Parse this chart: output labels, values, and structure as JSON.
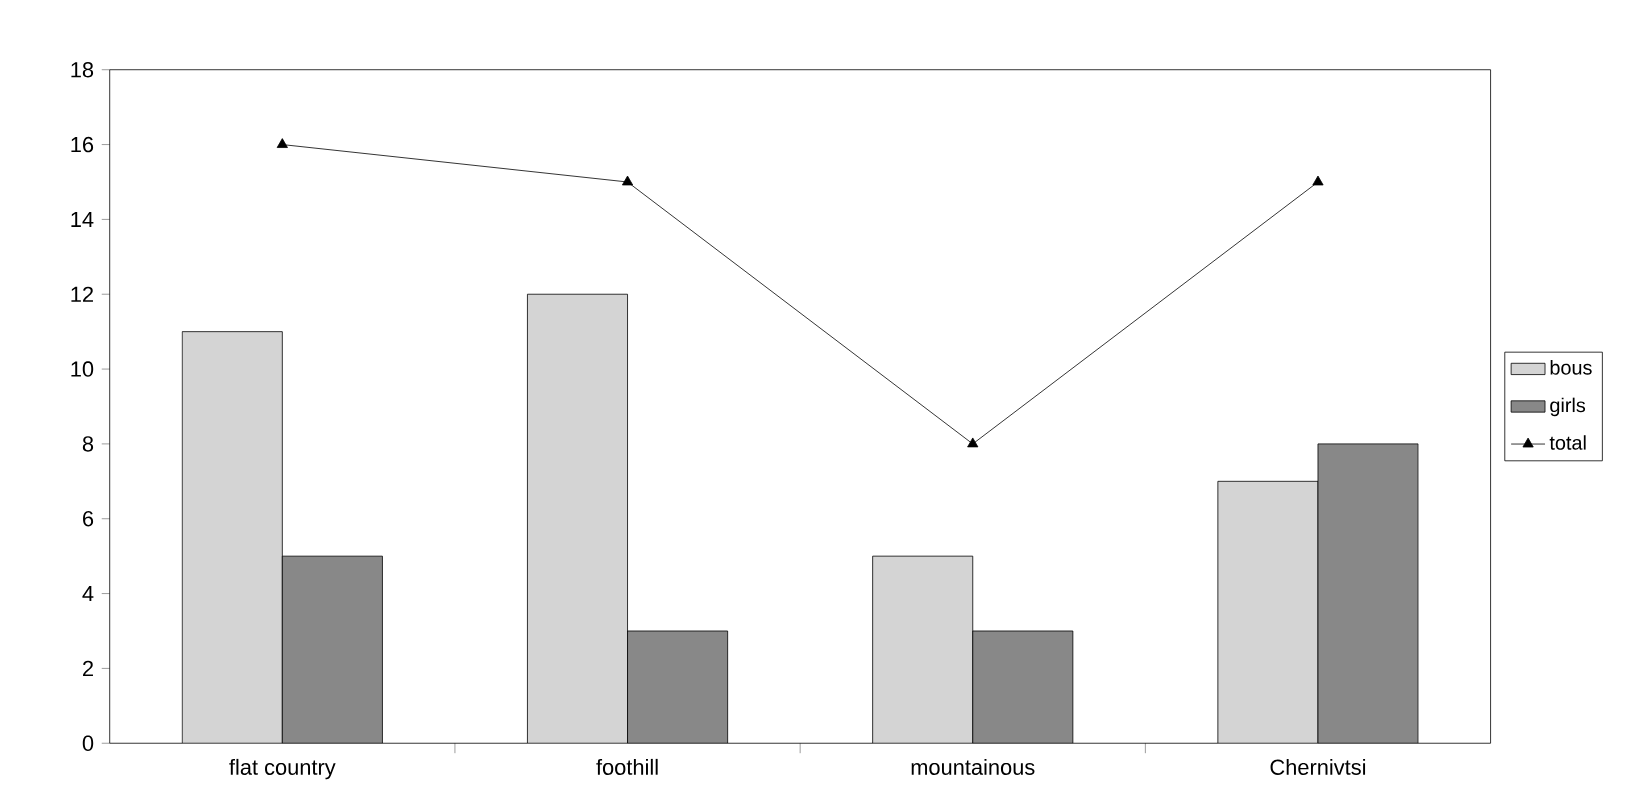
{
  "chart_data": {
    "type": "bar",
    "categories": [
      "flat country",
      "foothill",
      "mountainous",
      "Chernivtsi"
    ],
    "series": [
      {
        "name": "bous",
        "color": "#d4d4d4",
        "values": [
          11,
          12,
          5,
          7
        ]
      },
      {
        "name": "girls",
        "color": "#888888",
        "values": [
          5,
          3,
          3,
          8
        ]
      },
      {
        "name": "total",
        "type": "line",
        "color": "#000000",
        "marker": "triangle",
        "values": [
          16,
          15,
          8,
          15
        ]
      }
    ],
    "ylim": [
      0,
      18
    ],
    "yticks": [
      0,
      2,
      4,
      6,
      8,
      10,
      12,
      14,
      16,
      18
    ],
    "legend": "right",
    "grid": false
  }
}
